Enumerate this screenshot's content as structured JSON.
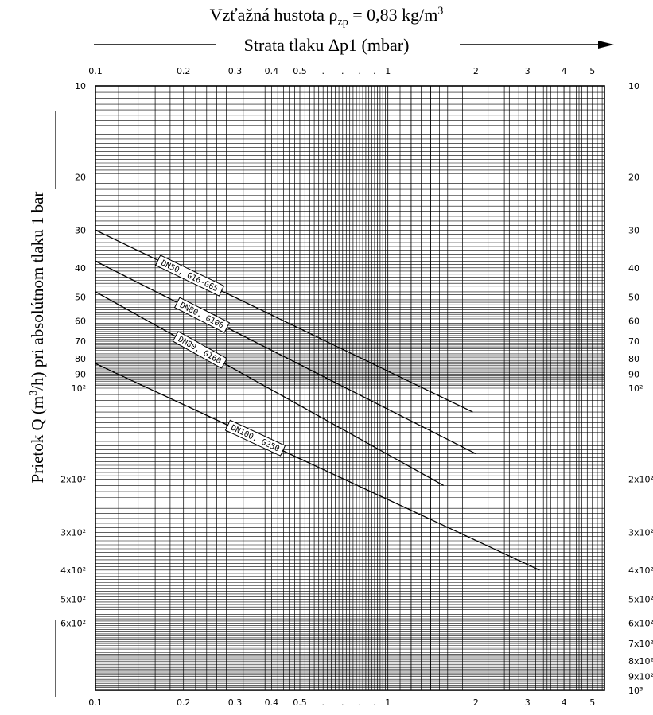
{
  "title": {
    "line1_prefix": "Vzťažná hustota ρ",
    "line1_sub": "zp",
    "line1_mid": " = 0,83 kg/m",
    "line1_sup": "3",
    "line2": "Strata tlaku Δp1 (mbar)"
  },
  "ylabel": {
    "prefix": "Prietok Q (m",
    "sup": "3",
    "suffix": "/h) pri absolútnom tlaku 1 bar"
  },
  "chart_data": {
    "type": "line",
    "title": "Vzťažná hustota ρzp = 0,83 kg/m3",
    "xlabel": "Strata tlaku Δp1 (mbar)",
    "ylabel": "Prietok Q (m3/h) pri absolútnom tlaku 1 bar",
    "x_scale": "log",
    "y_scale": "log",
    "y_axis_direction": "downward",
    "xlim": [
      0.1,
      5.5
    ],
    "ylim": [
      10,
      1000
    ],
    "grid": true,
    "x_ticks": [
      {
        "v": 0.1,
        "label": "0.1"
      },
      {
        "v": 0.2,
        "label": "0.2"
      },
      {
        "v": 0.3,
        "label": "0.3"
      },
      {
        "v": 0.4,
        "label": "0.4"
      },
      {
        "v": 0.5,
        "label": "0.5"
      },
      {
        "v": 0.6,
        "label": "."
      },
      {
        "v": 0.7,
        "label": "."
      },
      {
        "v": 0.8,
        "label": "."
      },
      {
        "v": 0.9,
        "label": "."
      },
      {
        "v": 1,
        "label": "1"
      },
      {
        "v": 2,
        "label": "2"
      },
      {
        "v": 3,
        "label": "3"
      },
      {
        "v": 4,
        "label": "4"
      },
      {
        "v": 5,
        "label": "5"
      }
    ],
    "y_ticks_left": [
      {
        "v": 10,
        "label": "10"
      },
      {
        "v": 20,
        "label": "20"
      },
      {
        "v": 30,
        "label": "30"
      },
      {
        "v": 40,
        "label": "40"
      },
      {
        "v": 50,
        "label": "50"
      },
      {
        "v": 60,
        "label": "60"
      },
      {
        "v": 70,
        "label": "70"
      },
      {
        "v": 80,
        "label": "80"
      },
      {
        "v": 90,
        "label": "90"
      },
      {
        "v": 100,
        "label": "10²"
      },
      {
        "v": 200,
        "label": "2x10²"
      },
      {
        "v": 300,
        "label": "3x10²"
      },
      {
        "v": 400,
        "label": "4x10²"
      },
      {
        "v": 500,
        "label": "5x10²"
      },
      {
        "v": 600,
        "label": "6x10²"
      }
    ],
    "y_ticks_right": [
      {
        "v": 10,
        "label": "10"
      },
      {
        "v": 20,
        "label": "20"
      },
      {
        "v": 30,
        "label": "30"
      },
      {
        "v": 40,
        "label": "40"
      },
      {
        "v": 50,
        "label": "50"
      },
      {
        "v": 60,
        "label": "60"
      },
      {
        "v": 70,
        "label": "70"
      },
      {
        "v": 80,
        "label": "80"
      },
      {
        "v": 90,
        "label": "90"
      },
      {
        "v": 100,
        "label": "10²"
      },
      {
        "v": 200,
        "label": "2x10²"
      },
      {
        "v": 300,
        "label": "3x10²"
      },
      {
        "v": 400,
        "label": "4x10²"
      },
      {
        "v": 500,
        "label": "5x10²"
      },
      {
        "v": 600,
        "label": "6x10²"
      },
      {
        "v": 700,
        "label": "7x10²"
      },
      {
        "v": 800,
        "label": "8x10²"
      },
      {
        "v": 900,
        "label": "9x10²"
      },
      {
        "v": 1000,
        "label": "10³"
      }
    ],
    "series": [
      {
        "name": "DN50, G16-G65",
        "x": [
          0.1,
          1.95
        ],
        "y": [
          30,
          120
        ]
      },
      {
        "name": "DN80, G100",
        "x": [
          0.1,
          2.0
        ],
        "y": [
          38,
          165
        ]
      },
      {
        "name": "DN80, G160",
        "x": [
          0.1,
          1.55
        ],
        "y": [
          48,
          210
        ]
      },
      {
        "name": "DN100, G250",
        "x": [
          0.1,
          3.3
        ],
        "y": [
          83,
          400
        ]
      }
    ]
  }
}
